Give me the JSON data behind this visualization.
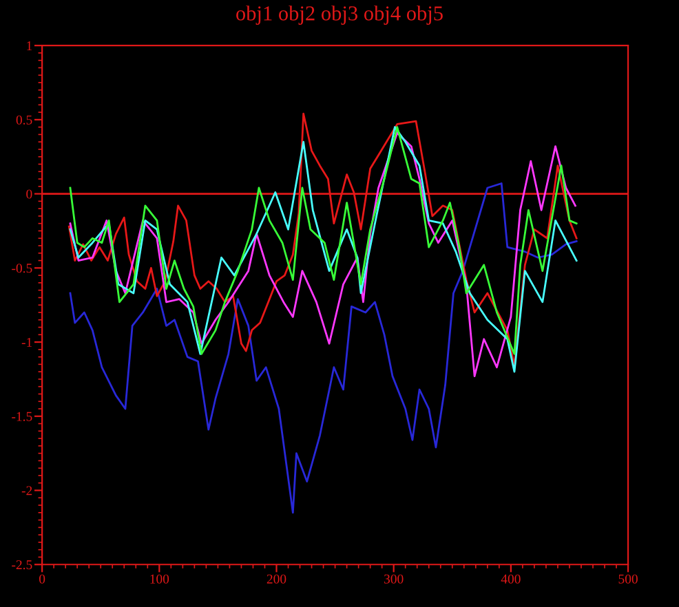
{
  "chart_data": {
    "type": "line",
    "title": "obj1 obj2 obj3 obj4 obj5",
    "xlim": [
      0,
      500
    ],
    "xticks": [
      0,
      100,
      200,
      300,
      400,
      500
    ],
    "ylim": [
      -2.5,
      1
    ],
    "yticks": [
      {
        "value": -2.5,
        "label": "-2.5"
      },
      {
        "value": -2,
        "label": "-2"
      },
      {
        "value": -1.5,
        "label": "-1.5"
      },
      {
        "value": -1,
        "label": "-1"
      },
      {
        "value": -0.5,
        "label": "-0.5"
      },
      0,
      0.5,
      1
    ],
    "grid": false,
    "legend": false,
    "marker": "none",
    "line_style": "solid",
    "ref_lines": [
      {
        "axis": "y",
        "value": 0,
        "label": null,
        "color": "#e01818"
      }
    ],
    "series": [
      {
        "color": "#2828d8",
        "x": [
          24,
          28,
          36,
          43,
          51,
          63,
          71,
          77,
          86,
          98,
          106,
          113,
          124,
          133,
          142,
          148,
          159,
          167,
          176,
          183,
          191,
          202,
          214,
          217,
          226,
          237,
          249,
          257,
          264,
          276,
          284,
          292,
          299,
          310,
          316,
          322,
          330,
          336,
          344,
          351,
          359,
          365,
          380,
          392,
          397,
          412,
          423,
          435,
          447,
          456
        ],
        "values": [
          -0.67,
          -0.87,
          -0.8,
          -0.92,
          -1.17,
          -1.36,
          -1.45,
          -0.89,
          -0.8,
          -0.64,
          -0.89,
          -0.85,
          -1.1,
          -1.13,
          -1.59,
          -1.38,
          -1.08,
          -0.71,
          -0.89,
          -1.26,
          -1.17,
          -1.45,
          -2.15,
          -1.75,
          -1.94,
          -1.63,
          -1.17,
          -1.32,
          -0.76,
          -0.8,
          -0.73,
          -0.95,
          -1.23,
          -1.45,
          -1.66,
          -1.32,
          -1.45,
          -1.71,
          -1.29,
          -0.67,
          -0.52,
          -0.36,
          0.04,
          0.07,
          -0.36,
          -0.39,
          -0.43,
          -0.41,
          -0.34,
          -0.32
        ]
      },
      {
        "color": "#e81818",
        "x": [
          23,
          28,
          35,
          42,
          49,
          56,
          63,
          70,
          74,
          81,
          88,
          93,
          98,
          105,
          112,
          116,
          123,
          130,
          135,
          142,
          149,
          156,
          163,
          170,
          174,
          179,
          186,
          193,
          200,
          207,
          214,
          219,
          223,
          230,
          237,
          244,
          249,
          260,
          266,
          272,
          280,
          287,
          303,
          319,
          327,
          333,
          342,
          350,
          362,
          369,
          380,
          397,
          403,
          412,
          420,
          431,
          440,
          450,
          456
        ],
        "values": [
          -0.22,
          -0.45,
          -0.34,
          -0.45,
          -0.36,
          -0.45,
          -0.27,
          -0.16,
          -0.41,
          -0.59,
          -0.64,
          -0.5,
          -0.69,
          -0.59,
          -0.32,
          -0.08,
          -0.18,
          -0.55,
          -0.64,
          -0.59,
          -0.64,
          -0.73,
          -0.69,
          -1.01,
          -1.06,
          -0.92,
          -0.87,
          -0.73,
          -0.59,
          -0.55,
          -0.41,
          -0.13,
          0.54,
          0.29,
          0.19,
          0.1,
          -0.2,
          0.13,
          0.01,
          -0.24,
          0.17,
          0.26,
          0.47,
          0.49,
          0.13,
          -0.15,
          -0.08,
          -0.11,
          -0.58,
          -0.8,
          -0.67,
          -0.92,
          -1.16,
          -0.48,
          -0.24,
          -0.3,
          0.19,
          -0.18,
          -0.3
        ]
      },
      {
        "color": "#ff38ff",
        "x": [
          24,
          31,
          43,
          55,
          63,
          71,
          86,
          98,
          106,
          117,
          129,
          136,
          148,
          159,
          176,
          183,
          194,
          206,
          214,
          222,
          234,
          245,
          257,
          269,
          274,
          280,
          287,
          303,
          315,
          322,
          330,
          338,
          350,
          362,
          369,
          377,
          388,
          400,
          408,
          417,
          426,
          438,
          447,
          455
        ],
        "values": [
          -0.2,
          -0.45,
          -0.43,
          -0.18,
          -0.52,
          -0.67,
          -0.18,
          -0.3,
          -0.73,
          -0.71,
          -0.8,
          -1.01,
          -0.85,
          -0.73,
          -0.52,
          -0.27,
          -0.55,
          -0.73,
          -0.83,
          -0.52,
          -0.73,
          -1.01,
          -0.61,
          -0.43,
          -0.73,
          -0.27,
          0.04,
          0.41,
          0.32,
          0.1,
          -0.2,
          -0.33,
          -0.18,
          -0.61,
          -1.23,
          -0.98,
          -1.17,
          -0.83,
          -0.11,
          0.22,
          -0.11,
          0.32,
          0.04,
          -0.08
        ]
      },
      {
        "color": "#48ffff",
        "x": [
          24,
          31,
          43,
          57,
          65,
          78,
          88,
          98,
          109,
          124,
          135,
          153,
          164,
          183,
          199,
          210,
          223,
          231,
          245,
          260,
          269,
          272,
          284,
          301,
          310,
          322,
          330,
          342,
          353,
          365,
          380,
          397,
          403,
          412,
          427,
          438,
          456
        ],
        "values": [
          -0.24,
          -0.43,
          -0.33,
          -0.2,
          -0.61,
          -0.67,
          -0.18,
          -0.24,
          -0.61,
          -0.73,
          -1.08,
          -0.43,
          -0.55,
          -0.27,
          0.01,
          -0.24,
          0.35,
          -0.11,
          -0.52,
          -0.24,
          -0.43,
          -0.67,
          -0.2,
          0.45,
          0.35,
          0.19,
          -0.18,
          -0.2,
          -0.39,
          -0.67,
          -0.85,
          -0.98,
          -1.2,
          -0.52,
          -0.73,
          -0.18,
          -0.45
        ]
      },
      {
        "color": "#38ff38",
        "x": [
          24,
          30,
          36,
          43,
          51,
          57,
          63,
          66,
          78,
          88,
          98,
          106,
          113,
          121,
          129,
          136,
          148,
          156,
          167,
          179,
          185,
          194,
          205,
          214,
          222,
          229,
          241,
          249,
          260,
          272,
          280,
          292,
          303,
          315,
          322,
          330,
          342,
          348,
          356,
          362,
          377,
          388,
          403,
          408,
          415,
          427,
          443,
          450,
          456
        ],
        "values": [
          0.04,
          -0.33,
          -0.36,
          -0.3,
          -0.33,
          -0.18,
          -0.55,
          -0.73,
          -0.61,
          -0.08,
          -0.18,
          -0.64,
          -0.45,
          -0.64,
          -0.76,
          -1.08,
          -0.92,
          -0.73,
          -0.52,
          -0.24,
          0.04,
          -0.18,
          -0.33,
          -0.58,
          0.04,
          -0.24,
          -0.33,
          -0.58,
          -0.06,
          -0.61,
          -0.24,
          0.1,
          0.45,
          0.1,
          0.07,
          -0.36,
          -0.18,
          -0.06,
          -0.36,
          -0.67,
          -0.48,
          -0.8,
          -1.08,
          -0.48,
          -0.11,
          -0.52,
          0.19,
          -0.18,
          -0.2
        ]
      }
    ]
  }
}
